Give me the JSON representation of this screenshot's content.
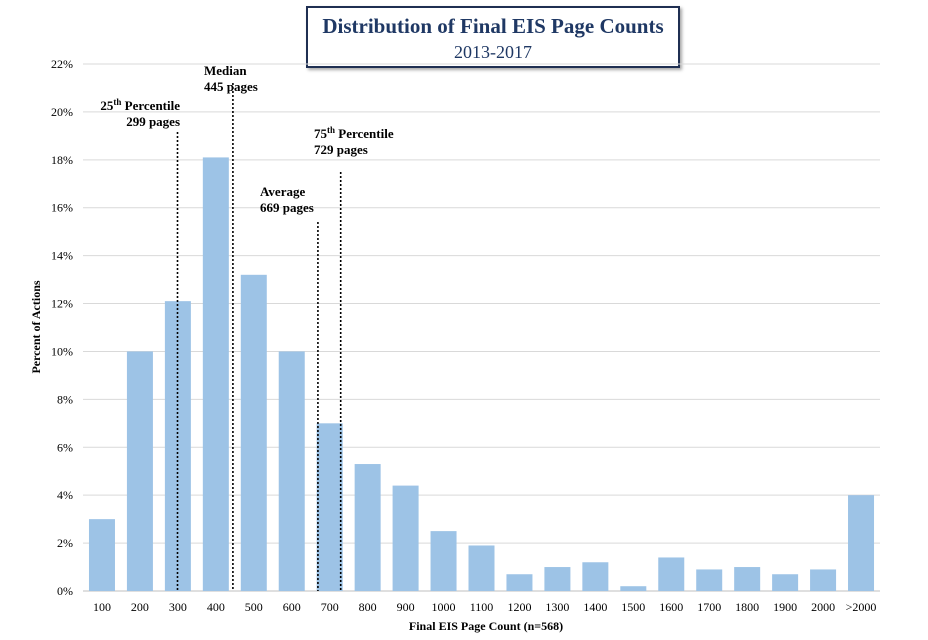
{
  "chart_data": {
    "type": "bar",
    "title": "Distribution of Final EIS Page Counts",
    "subtitle": "2013-2017",
    "xlabel": "Final EIS Page Count (n=568)",
    "ylabel": "Percent of Actions",
    "categories": [
      "100",
      "200",
      "300",
      "400",
      "500",
      "600",
      "700",
      "800",
      "900",
      "1000",
      "1100",
      "1200",
      "1300",
      "1400",
      "1500",
      "1600",
      "1700",
      "1800",
      "1900",
      "2000",
      ">2000"
    ],
    "values": [
      3.0,
      10.0,
      12.1,
      18.1,
      13.2,
      10.0,
      7.0,
      5.3,
      4.4,
      2.5,
      1.9,
      0.7,
      1.0,
      1.2,
      0.2,
      1.4,
      0.9,
      1.0,
      0.7,
      0.9,
      4.0
    ],
    "unit": "%",
    "ylim": [
      0,
      22
    ],
    "yticks": [
      "0%",
      "2%",
      "4%",
      "6%",
      "8%",
      "10%",
      "12%",
      "14%",
      "16%",
      "18%",
      "20%",
      "22%"
    ],
    "grid": true,
    "bar_color": "#9dc3e6",
    "annotations": [
      {
        "lines": [
          {
            "main": "25",
            "sup": "th",
            "rest": " Percentile"
          },
          {
            "main": "299 pages"
          }
        ],
        "value": 299
      },
      {
        "lines": [
          {
            "main": "Median"
          },
          {
            "main": "445 pages"
          }
        ],
        "value": 445
      },
      {
        "lines": [
          {
            "main": "Average"
          },
          {
            "main": "669 pages"
          }
        ],
        "value": 669
      },
      {
        "lines": [
          {
            "main": "75",
            "sup": "th",
            "rest": " Percentile"
          },
          {
            "main": "729 pages"
          }
        ],
        "value": 729
      }
    ]
  }
}
